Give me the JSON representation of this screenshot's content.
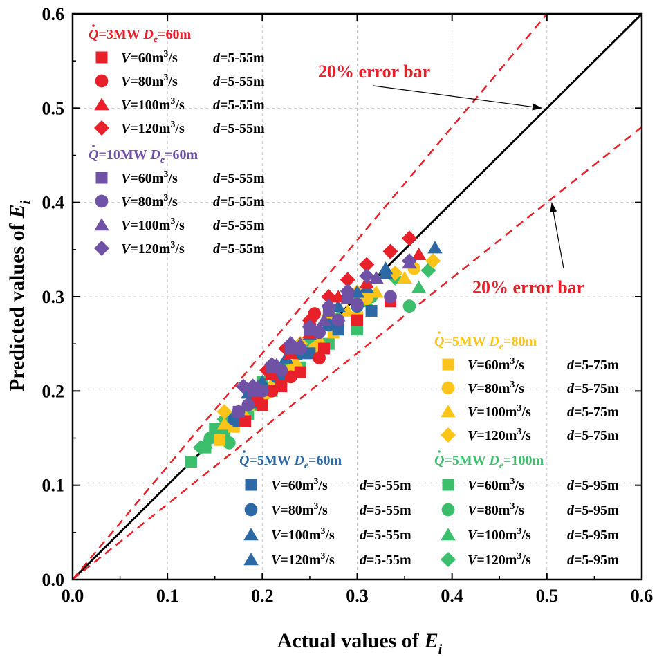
{
  "chart_data": {
    "type": "scatter",
    "xlabel": "Actual values of",
    "ylabel": "Predicted values of",
    "label_symbol": "E",
    "label_sub": "i",
    "xlim": [
      0.0,
      0.6
    ],
    "ylim": [
      0.0,
      0.6
    ],
    "xticks": [
      "0.0",
      "0.1",
      "0.2",
      "0.3",
      "0.4",
      "0.5",
      "0.6"
    ],
    "yticks": [
      "0.0",
      "0.1",
      "0.2",
      "0.3",
      "0.4",
      "0.5",
      "0.6"
    ],
    "grid": true,
    "reference_lines": [
      {
        "name": "y = x",
        "slope": 1.0,
        "style": "solid",
        "color": "#000000"
      },
      {
        "name": "+20% error",
        "slope": 1.2,
        "style": "dashed",
        "color": "#e8202a"
      },
      {
        "name": "-20% error",
        "slope": 0.8,
        "style": "dashed",
        "color": "#e8202a"
      }
    ],
    "annotations": [
      {
        "text": "20%  error bar",
        "target": [
          0.495,
          0.5
        ]
      },
      {
        "text": "20%  error bar",
        "target": [
          0.505,
          0.4
        ]
      }
    ],
    "groups": [
      {
        "name": "3MW-60",
        "title": {
          "Q": "3MW",
          "D": "60m"
        },
        "color": "#e8202a",
        "series": [
          {
            "marker": "square",
            "V": "60",
            "d": "5-55m",
            "points": [
              [
                0.335,
                0.295
              ],
              [
                0.3,
                0.275
              ],
              [
                0.265,
                0.245
              ],
              [
                0.24,
                0.22
              ],
              [
                0.22,
                0.205
              ],
              [
                0.2,
                0.185
              ],
              [
                0.182,
                0.168
              ]
            ]
          },
          {
            "marker": "circle",
            "V": "80",
            "d": "5-55m",
            "points": [
              [
                0.255,
                0.282
              ],
              [
                0.26,
                0.235
              ],
              [
                0.25,
                0.27
              ],
              [
                0.23,
                0.215
              ],
              [
                0.21,
                0.2
              ],
              [
                0.195,
                0.19
              ]
            ]
          },
          {
            "marker": "triangle",
            "V": "100",
            "d": "5-55m",
            "points": [
              [
                0.365,
                0.345
              ],
              [
                0.31,
                0.315
              ],
              [
                0.28,
                0.3
              ],
              [
                0.25,
                0.262
              ],
              [
                0.23,
                0.24
              ],
              [
                0.21,
                0.218
              ]
            ]
          },
          {
            "marker": "diamond",
            "V": "120",
            "d": "5-55m",
            "points": [
              [
                0.355,
                0.362
              ],
              [
                0.335,
                0.348
              ],
              [
                0.31,
                0.334
              ],
              [
                0.29,
                0.318
              ],
              [
                0.27,
                0.3
              ],
              [
                0.25,
                0.275
              ],
              [
                0.225,
                0.245
              ],
              [
                0.205,
                0.222
              ]
            ]
          }
        ]
      },
      {
        "name": "10MW-60",
        "title": {
          "Q": "10MW",
          "D": "60m"
        },
        "color": "#6f52a6",
        "series": [
          {
            "marker": "square",
            "V": "60",
            "d": "5-55m",
            "points": [
              [
                0.29,
                0.3
              ],
              [
                0.27,
                0.285
              ],
              [
                0.25,
                0.265
              ],
              [
                0.23,
                0.245
              ],
              [
                0.21,
                0.225
              ],
              [
                0.19,
                0.2
              ],
              [
                0.175,
                0.178
              ]
            ]
          },
          {
            "marker": "circle",
            "V": "80",
            "d": "5-55m",
            "points": [
              [
                0.335,
                0.3
              ],
              [
                0.3,
                0.292
              ],
              [
                0.28,
                0.275
              ],
              [
                0.26,
                0.262
              ],
              [
                0.24,
                0.245
              ],
              [
                0.22,
                0.222
              ],
              [
                0.2,
                0.2
              ],
              [
                0.185,
                0.185
              ],
              [
                0.175,
                0.178
              ]
            ]
          },
          {
            "marker": "triangle",
            "V": "100",
            "d": "5-55m",
            "points": [
              [
                0.355,
                0.336
              ],
              [
                0.32,
                0.32
              ],
              [
                0.29,
                0.298
              ],
              [
                0.265,
                0.275
              ],
              [
                0.24,
                0.25
              ],
              [
                0.215,
                0.228
              ],
              [
                0.195,
                0.205
              ]
            ]
          },
          {
            "marker": "diamond",
            "V": "120",
            "d": "5-55m",
            "points": [
              [
                0.355,
                0.338
              ],
              [
                0.31,
                0.322
              ],
              [
                0.29,
                0.306
              ],
              [
                0.27,
                0.29
              ],
              [
                0.25,
                0.268
              ],
              [
                0.23,
                0.25
              ],
              [
                0.21,
                0.228
              ],
              [
                0.19,
                0.205
              ],
              [
                0.18,
                0.205
              ]
            ]
          }
        ]
      },
      {
        "name": "5MW-80",
        "title": {
          "Q": "5MW",
          "D": "80m"
        },
        "color": "#fcc419",
        "series": [
          {
            "marker": "square",
            "V": "60",
            "d": "5-75m",
            "points": [
              [
                0.3,
                0.278
              ],
              [
                0.275,
                0.262
              ],
              [
                0.25,
                0.24
              ],
              [
                0.225,
                0.215
              ],
              [
                0.2,
                0.19
              ],
              [
                0.17,
                0.162
              ],
              [
                0.155,
                0.148
              ]
            ]
          },
          {
            "marker": "circle",
            "V": "80",
            "d": "5-75m",
            "points": [
              [
                0.36,
                0.33
              ],
              [
                0.31,
                0.298
              ],
              [
                0.28,
                0.27
              ],
              [
                0.255,
                0.245
              ],
              [
                0.23,
                0.222
              ],
              [
                0.205,
                0.198
              ],
              [
                0.18,
                0.172
              ]
            ]
          },
          {
            "marker": "triangle",
            "V": "100",
            "d": "5-75m",
            "points": [
              [
                0.35,
                0.32
              ],
              [
                0.32,
                0.305
              ],
              [
                0.29,
                0.285
              ],
              [
                0.26,
                0.255
              ],
              [
                0.235,
                0.232
              ],
              [
                0.21,
                0.208
              ],
              [
                0.185,
                0.185
              ],
              [
                0.16,
                0.165
              ]
            ]
          },
          {
            "marker": "diamond",
            "V": "120",
            "d": "5-75m",
            "points": [
              [
                0.38,
                0.338
              ],
              [
                0.34,
                0.325
              ],
              [
                0.3,
                0.305
              ],
              [
                0.27,
                0.28
              ],
              [
                0.24,
                0.25
              ],
              [
                0.215,
                0.225
              ],
              [
                0.19,
                0.198
              ],
              [
                0.16,
                0.178
              ]
            ]
          }
        ]
      },
      {
        "name": "5MW-60",
        "title": {
          "Q": "5MW",
          "D": "60m"
        },
        "color": "#2d69a5",
        "series": [
          {
            "marker": "square",
            "V": "60",
            "d": "5-55m",
            "points": [
              [
                0.315,
                0.285
              ],
              [
                0.28,
                0.265
              ],
              [
                0.25,
                0.24
              ],
              [
                0.22,
                0.21
              ],
              [
                0.195,
                0.188
              ],
              [
                0.175,
                0.168
              ]
            ]
          },
          {
            "marker": "circle",
            "V": "80",
            "d": "5-55m",
            "points": [
              [
                0.3,
                0.29
              ],
              [
                0.27,
                0.27
              ],
              [
                0.24,
                0.24
              ],
              [
                0.215,
                0.215
              ],
              [
                0.19,
                0.192
              ],
              [
                0.17,
                0.17
              ]
            ]
          },
          {
            "marker": "triangle",
            "V": "100",
            "d": "5-55m",
            "points": [
              [
                0.382,
                0.352
              ],
              [
                0.33,
                0.33
              ],
              [
                0.3,
                0.305
              ],
              [
                0.265,
                0.275
              ],
              [
                0.235,
                0.245
              ],
              [
                0.21,
                0.222
              ],
              [
                0.185,
                0.198
              ]
            ]
          },
          {
            "marker": "triangle",
            "V": "120",
            "d": "5-55m",
            "points": [
              [
                0.33,
                0.325
              ],
              [
                0.31,
                0.31
              ],
              [
                0.28,
                0.29
              ],
              [
                0.25,
                0.26
              ],
              [
                0.225,
                0.235
              ],
              [
                0.2,
                0.21
              ]
            ]
          }
        ]
      },
      {
        "name": "5MW-100",
        "title": {
          "Q": "5MW",
          "D": "100m"
        },
        "color": "#3cbf6c",
        "series": [
          {
            "marker": "square",
            "V": "60",
            "d": "5-95m",
            "points": [
              [
                0.3,
                0.265
              ],
              [
                0.27,
                0.25
              ],
              [
                0.24,
                0.225
              ],
              [
                0.21,
                0.2
              ],
              [
                0.185,
                0.175
              ],
              [
                0.16,
                0.155
              ],
              [
                0.14,
                0.14
              ],
              [
                0.125,
                0.125
              ],
              [
                0.15,
                0.16
              ],
              [
                0.2,
                0.21
              ]
            ]
          },
          {
            "marker": "circle",
            "V": "80",
            "d": "5-95m",
            "points": [
              [
                0.355,
                0.29
              ],
              [
                0.315,
                0.3
              ],
              [
                0.28,
                0.275
              ],
              [
                0.25,
                0.245
              ],
              [
                0.22,
                0.215
              ],
              [
                0.19,
                0.185
              ],
              [
                0.165,
                0.145
              ],
              [
                0.145,
                0.15
              ]
            ]
          },
          {
            "marker": "triangle",
            "V": "100",
            "d": "5-95m",
            "points": [
              [
                0.365,
                0.31
              ],
              [
                0.31,
                0.295
              ],
              [
                0.28,
                0.28
              ],
              [
                0.25,
                0.255
              ],
              [
                0.225,
                0.23
              ],
              [
                0.195,
                0.2
              ],
              [
                0.17,
                0.175
              ],
              [
                0.14,
                0.145
              ]
            ]
          },
          {
            "marker": "diamond",
            "V": "120",
            "d": "5-95m",
            "points": [
              [
                0.375,
                0.328
              ],
              [
                0.34,
                0.32
              ],
              [
                0.3,
                0.3
              ],
              [
                0.27,
                0.275
              ],
              [
                0.24,
                0.25
              ],
              [
                0.21,
                0.222
              ],
              [
                0.185,
                0.2
              ],
              [
                0.16,
                0.17
              ],
              [
                0.135,
                0.14
              ]
            ]
          }
        ]
      }
    ]
  }
}
